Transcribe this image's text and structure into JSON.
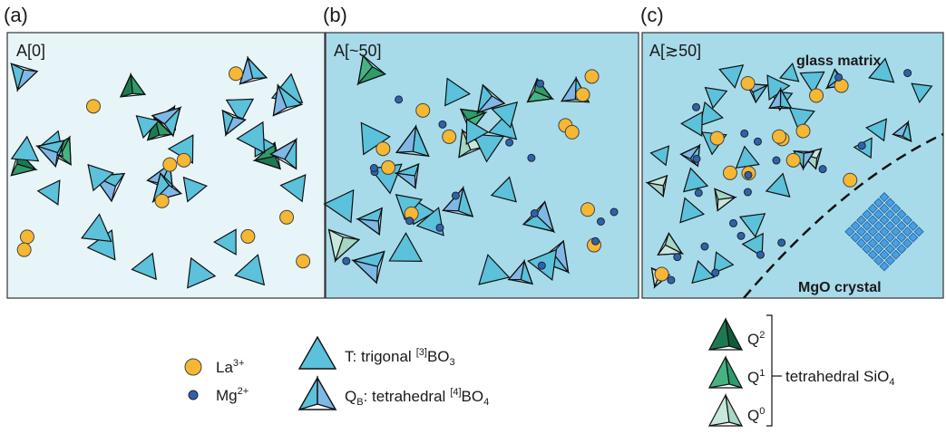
{
  "panels": [
    {
      "letter": "(a)",
      "label": "A[0]"
    },
    {
      "letter": "(b)",
      "label": "A[~50]"
    },
    {
      "letter": "(c)",
      "label": "A[≳50]",
      "annotations": [
        "glass matrix",
        "MgO crystal"
      ]
    }
  ],
  "legend": {
    "ions": [
      {
        "symbol": "La",
        "charge": "3+"
      },
      {
        "symbol": "Mg",
        "charge": "2+"
      }
    ],
    "boron": [
      {
        "name": "T: trigonal",
        "coordination": "[3]",
        "formula": "BO",
        "subscript": "3"
      },
      {
        "name": "Q",
        "name_subscript": "B",
        "description": ": tetrahedral",
        "coordination": "[4]",
        "formula": "BO",
        "subscript": "4"
      }
    ],
    "silicon": {
      "species": [
        {
          "name": "Q",
          "superscript": "2"
        },
        {
          "name": "Q",
          "superscript": "1"
        },
        {
          "name": "Q",
          "superscript": "0"
        }
      ],
      "label": "tetrahedral SiO",
      "label_subscript": "4"
    }
  }
}
